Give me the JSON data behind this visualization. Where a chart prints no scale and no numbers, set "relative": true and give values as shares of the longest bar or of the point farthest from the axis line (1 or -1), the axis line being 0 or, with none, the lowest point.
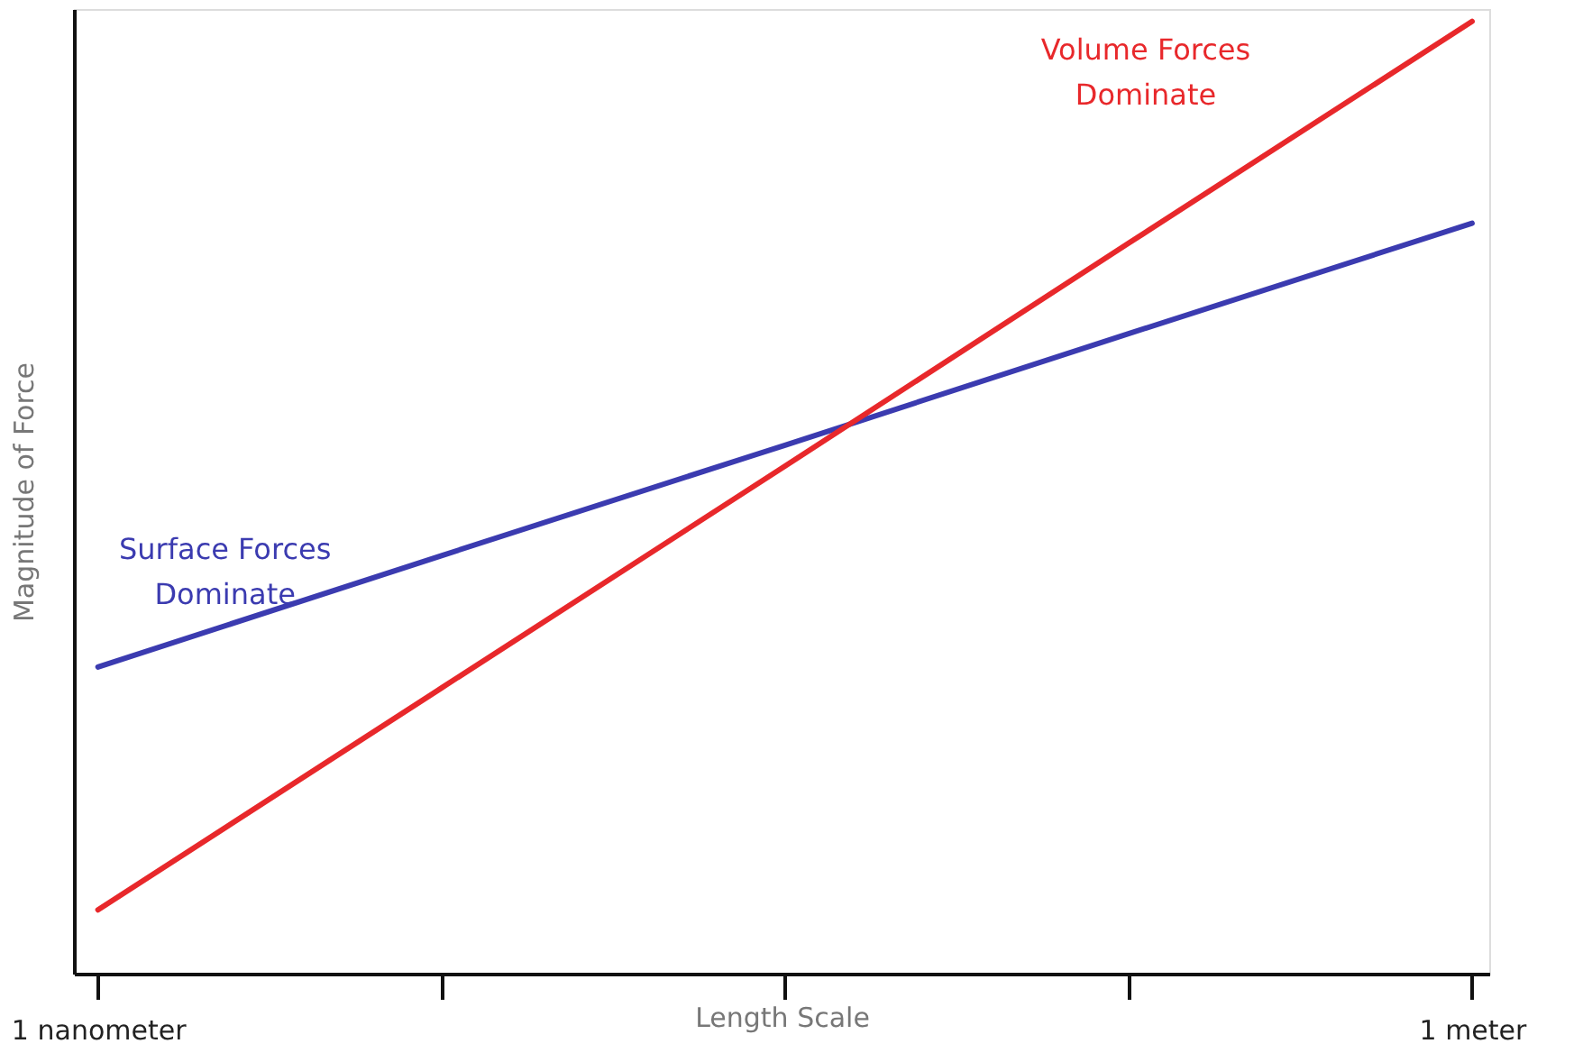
{
  "chart_data": {
    "type": "line",
    "relative": true,
    "xlabel": "Length Scale",
    "ylabel": "Magnitude of Force",
    "categories": [
      "1 nanometer",
      null,
      null,
      null,
      "1 meter"
    ],
    "series": [
      {
        "name": "Surface Forces Dominate",
        "color": "#3b3bb0",
        "values": [
          0.322,
          0.439,
          0.555,
          0.672,
          0.788
        ]
      },
      {
        "name": "Volume Forces Dominate",
        "color": "#e8282b",
        "values": [
          0.067,
          0.3,
          0.533,
          0.767,
          1.0
        ]
      }
    ],
    "marker": "none",
    "line_style": "solid"
  }
}
